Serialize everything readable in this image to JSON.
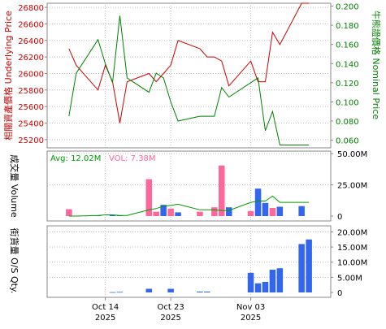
{
  "charts": {
    "price": {
      "ylabel_left": "相關資產價格 Underlying Price",
      "ylabel_right": "牛熊證價格 Nominal Price",
      "left_ticks": [
        "26800",
        "26600",
        "26400",
        "26200",
        "26000",
        "25800",
        "25600",
        "25400",
        "25200"
      ],
      "right_ticks": [
        "0.200",
        "0.180",
        "0.160",
        "0.140",
        "0.120",
        "0.100",
        "0.080",
        "0.060"
      ]
    },
    "volume": {
      "ylabel": "成交量 Volume",
      "avg_label": "Avg: 12.02M",
      "vol_label": "VOL: 7.38M",
      "ticks": [
        "50.00M",
        "25.00M",
        "0"
      ]
    },
    "os": {
      "ylabel": "街貨量 O/S Qty.",
      "ticks": [
        "20.00M",
        "15.00M",
        "10.00M",
        "5.00M",
        "0"
      ]
    },
    "x_labels": [
      {
        "day": "Oct 14",
        "year": "2025"
      },
      {
        "day": "Oct 23",
        "year": "2025"
      },
      {
        "day": "Nov 03",
        "year": "2025"
      }
    ]
  },
  "colors": {
    "underlying": "#cc0000",
    "nominal": "#008000",
    "volume_up": "#ff6699",
    "volume_down": "#3366ee",
    "avg_line": "#009900",
    "grid": "#c0c0c0"
  },
  "chart_data": [
    {
      "type": "line",
      "title": "",
      "x": [
        "2025-10-09",
        "2025-10-10",
        "2025-10-13",
        "2025-10-14",
        "2025-10-15",
        "2025-10-16",
        "2025-10-17",
        "2025-10-20",
        "2025-10-21",
        "2025-10-22",
        "2025-10-23",
        "2025-10-24",
        "2025-10-27",
        "2025-10-28",
        "2025-10-29",
        "2025-10-30",
        "2025-10-31",
        "2025-11-03",
        "2025-11-04",
        "2025-11-05",
        "2025-11-06",
        "2025-11-07",
        "2025-11-10",
        "2025-11-11"
      ],
      "series": [
        {
          "axis": "left",
          "values": [
            26300,
            26100,
            25800,
            26100,
            25900,
            25400,
            25900,
            26000,
            25900,
            26000,
            26100,
            26400,
            26300,
            26200,
            26200,
            26150,
            25850,
            26150,
            25900,
            25900,
            26500,
            26350,
            26850,
            26850
          ]
        },
        {
          "axis": "right",
          "values": [
            0.085,
            0.13,
            0.165,
            0.14,
            0.12,
            0.19,
            0.125,
            0.11,
            0.13,
            0.125,
            0.1,
            0.08,
            0.085,
            0.085,
            0.085,
            0.115,
            0.105,
            0.12,
            0.125,
            0.07,
            0.09,
            0.055,
            0.055,
            0.055
          ]
        }
      ],
      "ylim_left": [
        25100,
        26850
      ],
      "ylim_right": [
        0.052,
        0.203
      ],
      "grid": true
    },
    {
      "type": "bar",
      "title": "",
      "categories": [
        "2025-10-09",
        "2025-10-13",
        "2025-10-15",
        "2025-10-16",
        "2025-10-20",
        "2025-10-21",
        "2025-10-22",
        "2025-10-23",
        "2025-10-24",
        "2025-10-27",
        "2025-10-29",
        "2025-10-30",
        "2025-10-31",
        "2025-11-03",
        "2025-11-04",
        "2025-11-05",
        "2025-11-06",
        "2025-11-07",
        "2025-11-10"
      ],
      "values": [
        5.5,
        0.5,
        0.8,
        0.5,
        29.5,
        3.5,
        9.0,
        6.0,
        3.0,
        3.5,
        7.0,
        40.5,
        7.0,
        4.0,
        22.0,
        10.5,
        6.5,
        7.5,
        8.0
      ],
      "bar_colors": [
        "up",
        "down",
        "down",
        "down",
        "up",
        "up",
        "down",
        "up",
        "down",
        "up",
        "up",
        "up",
        "down",
        "up",
        "down",
        "down",
        "up",
        "down",
        "down"
      ],
      "avg_line": [
        0,
        0,
        0.5,
        1,
        1,
        0.5,
        0.5,
        5,
        6,
        8,
        8.5,
        9.5,
        5,
        5,
        5,
        4.5,
        4.5,
        11,
        12,
        12,
        16,
        11,
        11,
        11
      ],
      "ylim": [
        0,
        52
      ],
      "unit": "M",
      "grid": true
    },
    {
      "type": "bar",
      "title": "",
      "categories": [
        "2025-10-15",
        "2025-10-16",
        "2025-10-20",
        "2025-10-23",
        "2025-10-27",
        "2025-10-28",
        "2025-11-03",
        "2025-11-04",
        "2025-11-05",
        "2025-11-06",
        "2025-11-07",
        "2025-11-10",
        "2025-11-11"
      ],
      "values": [
        0.1,
        0.2,
        1.2,
        1.2,
        0.3,
        0.3,
        6.5,
        3.0,
        3.5,
        7.5,
        8.0,
        16.0,
        17.5
      ],
      "ylim": [
        0,
        22
      ],
      "unit": "M",
      "grid": true
    }
  ]
}
